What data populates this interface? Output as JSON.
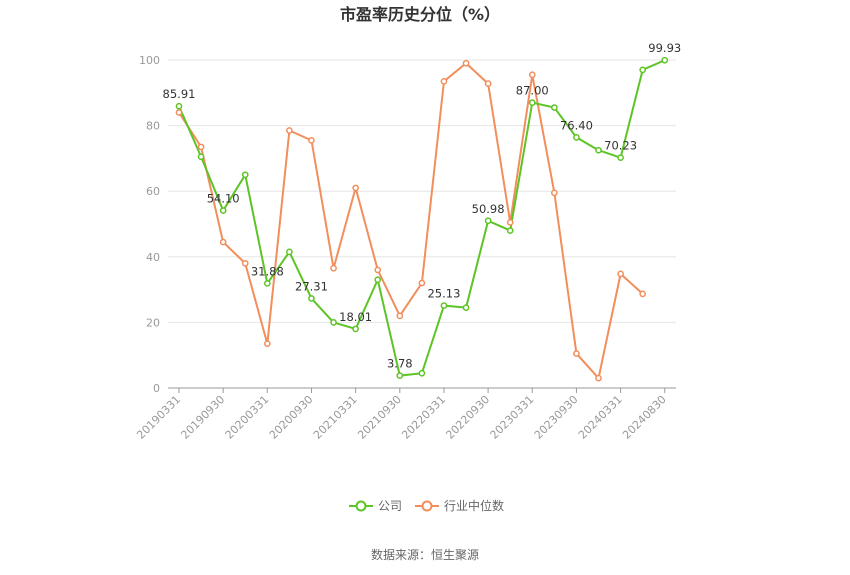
{
  "chart_data": {
    "type": "line",
    "title": "市盈率历史分位（%）",
    "xlabel": "",
    "ylabel": "",
    "ylim": [
      0,
      100
    ],
    "yticks": [
      0,
      20,
      40,
      60,
      80,
      100
    ],
    "x": [
      "20190331",
      "20190630",
      "20190930",
      "20191231",
      "20200331",
      "20200630",
      "20200930",
      "20201231",
      "20210331",
      "20210630",
      "20210930",
      "20211231",
      "20220331",
      "20220630",
      "20220930",
      "20221231",
      "20230331",
      "20230630",
      "20230930",
      "20231231",
      "20240331",
      "20240630",
      "20240830"
    ],
    "xticks": [
      "20190331",
      "20190930",
      "20200331",
      "20200930",
      "20210331",
      "20210930",
      "20220331",
      "20220930",
      "20230331",
      "20230930",
      "20240331",
      "20240830"
    ],
    "series": [
      {
        "name": "公司",
        "color": "#5dc426",
        "values": [
          85.91,
          70.5,
          54.1,
          65.0,
          31.88,
          41.5,
          27.31,
          20.0,
          18.01,
          33.0,
          3.78,
          4.5,
          25.13,
          24.5,
          50.98,
          48.0,
          87.0,
          85.5,
          76.4,
          72.5,
          70.23,
          97.0,
          99.93
        ],
        "labels": {
          "0": "85.91",
          "2": "54.10",
          "4": "31.88",
          "6": "27.31",
          "8": "18.01",
          "10": "3.78",
          "12": "25.13",
          "14": "50.98",
          "16": "87.00",
          "18": "76.40",
          "20": "70.23",
          "22": "99.93"
        }
      },
      {
        "name": "行业中位数",
        "color": "#f28e5c",
        "values": [
          84.0,
          73.5,
          44.5,
          38.0,
          13.5,
          78.5,
          75.5,
          36.5,
          61.0,
          36.0,
          22.0,
          32.0,
          93.5,
          99.0,
          92.8,
          50.5,
          95.5,
          59.5,
          10.5,
          3.0,
          34.8,
          28.7,
          null
        ]
      }
    ],
    "legend_position": "bottom",
    "grid": true,
    "source": "数据来源：恒生聚源"
  }
}
